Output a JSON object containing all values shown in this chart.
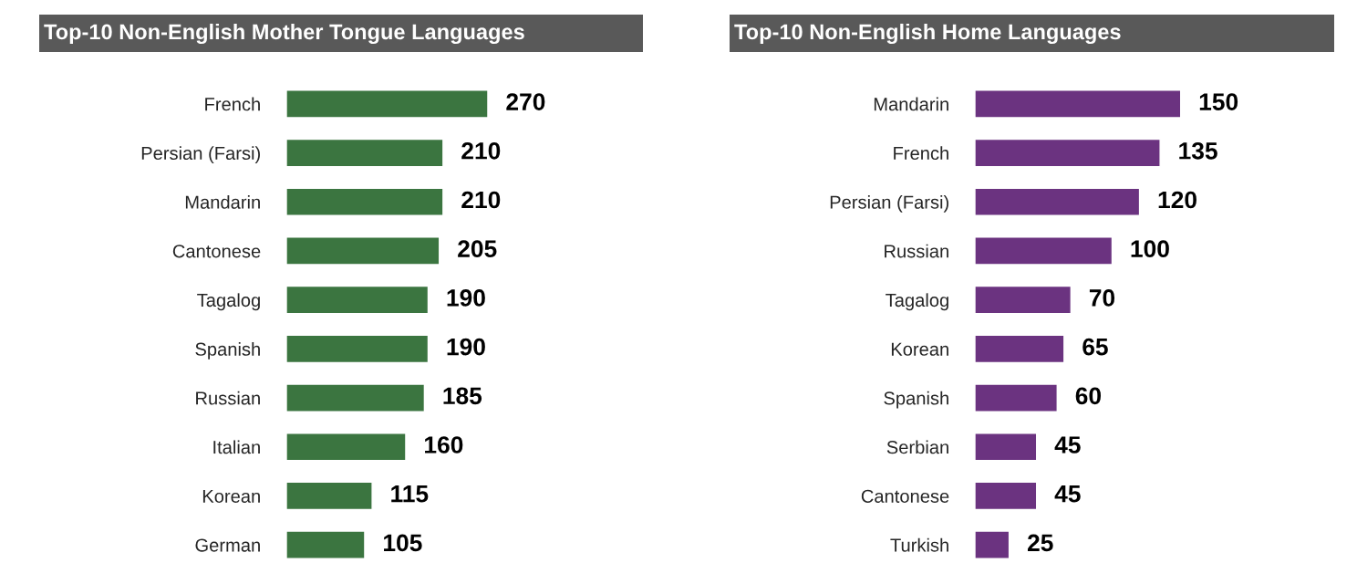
{
  "chart_data": [
    {
      "type": "bar",
      "orientation": "horizontal",
      "title": "Top-10 Non-English Mother Tongue Languages",
      "categories": [
        "French",
        "Persian (Farsi)",
        "Mandarin",
        "Cantonese",
        "Tagalog",
        "Spanish",
        "Russian",
        "Italian",
        "Korean",
        "German"
      ],
      "values": [
        270,
        210,
        210,
        205,
        190,
        190,
        185,
        160,
        115,
        105
      ],
      "color": "#3b7540",
      "data_labels": true,
      "tick_labels": "y",
      "grid": false
    },
    {
      "type": "bar",
      "orientation": "horizontal",
      "title": "Top-10 Non-English Home Languages",
      "categories": [
        "Mandarin",
        "French",
        "Persian (Farsi)",
        "Russian",
        "Tagalog",
        "Korean",
        "Spanish",
        "Serbian",
        "Cantonese",
        "Turkish"
      ],
      "values": [
        150,
        135,
        120,
        100,
        70,
        65,
        60,
        45,
        45,
        25
      ],
      "color": "#6b3380",
      "data_labels": true,
      "tick_labels": "y",
      "grid": false
    }
  ]
}
